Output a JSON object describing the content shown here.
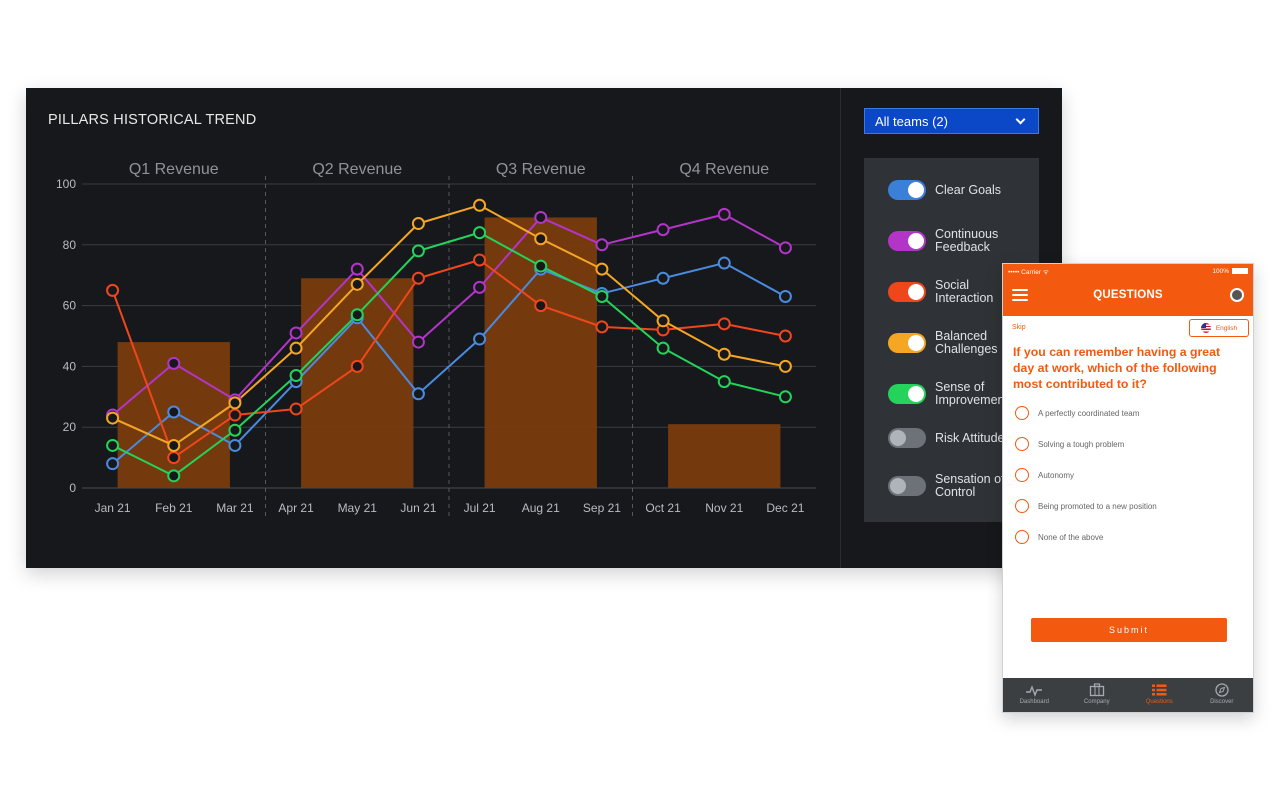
{
  "dashboard": {
    "title": "PILLARS HISTORICAL TREND",
    "team_select": {
      "value": "All teams (2)"
    },
    "legend": [
      {
        "label": "Clear Goals",
        "color": "#3a7fd8",
        "on": true
      },
      {
        "label": "Continuous\nFeedback",
        "color": "#b235c8",
        "on": true
      },
      {
        "label": "Social\nInteraction",
        "color": "#f0461c",
        "on": true
      },
      {
        "label": "Balanced\nChallenges",
        "color": "#f5a623",
        "on": true
      },
      {
        "label": "Sense of\nImprovement",
        "color": "#23d35b",
        "on": true
      },
      {
        "label": "Risk Attitude",
        "color": "#7c8288",
        "on": false
      },
      {
        "label": "Sensation of\nControl",
        "color": "#7c8288",
        "on": false
      }
    ]
  },
  "chart_data": {
    "type": "line",
    "quarters": [
      "Q1 Revenue",
      "Q2 Revenue",
      "Q3 Revenue",
      "Q4 Revenue"
    ],
    "quarter_bars": [
      48,
      69,
      89,
      21
    ],
    "bar_color": "#7a3b0e",
    "categories": [
      "Jan 21",
      "Feb 21",
      "Mar 21",
      "Apr 21",
      "May 21",
      "Jun 21",
      "Jul 21",
      "Aug 21",
      "Sep 21",
      "Oct 21",
      "Nov 21",
      "Dec 21"
    ],
    "yticks": [
      0,
      20,
      40,
      60,
      80,
      100
    ],
    "ylim": [
      0,
      100
    ],
    "series": [
      {
        "name": "Clear Goals",
        "color": "#4a8be0",
        "values": [
          8,
          25,
          14,
          35,
          56,
          31,
          49,
          72,
          64,
          69,
          74,
          63
        ]
      },
      {
        "name": "Continuous Feedback",
        "color": "#b235c8",
        "values": [
          24,
          41,
          29,
          51,
          72,
          48,
          66,
          89,
          80,
          85,
          90,
          79
        ]
      },
      {
        "name": "Social Interaction",
        "color": "#f0461c",
        "values": [
          65,
          10,
          24,
          26,
          40,
          69,
          75,
          60,
          53,
          52,
          54,
          50
        ]
      },
      {
        "name": "Balanced Challenges",
        "color": "#f5a623",
        "values": [
          23,
          14,
          28,
          46,
          67,
          87,
          93,
          82,
          72,
          55,
          44,
          40
        ]
      },
      {
        "name": "Sense of Improvement",
        "color": "#23d35b",
        "values": [
          14,
          4,
          19,
          37,
          57,
          78,
          84,
          73,
          63,
          46,
          35,
          30
        ]
      }
    ],
    "grid": true
  },
  "phone": {
    "status": {
      "carrier": "••••• Carrier ᯤ",
      "battery": "100%"
    },
    "title": "QUESTIONS",
    "skip": "Skip",
    "language": "English",
    "question": "If you can remember having a great day at work, which of the following most contributed to it?",
    "options": [
      "A perfectly coordinated team",
      "Solving a tough problem",
      "Autonomy",
      "Being promoted to a new position",
      "None of the above"
    ],
    "submit": "Submit",
    "tabs": [
      {
        "label": "Dashboard",
        "icon": "pulse-icon",
        "active": false
      },
      {
        "label": "Company",
        "icon": "briefcase-icon",
        "active": false
      },
      {
        "label": "Questions",
        "icon": "list-icon",
        "active": true
      },
      {
        "label": "Discover",
        "icon": "compass-icon",
        "active": false
      }
    ],
    "accent": "#f35a0f"
  }
}
